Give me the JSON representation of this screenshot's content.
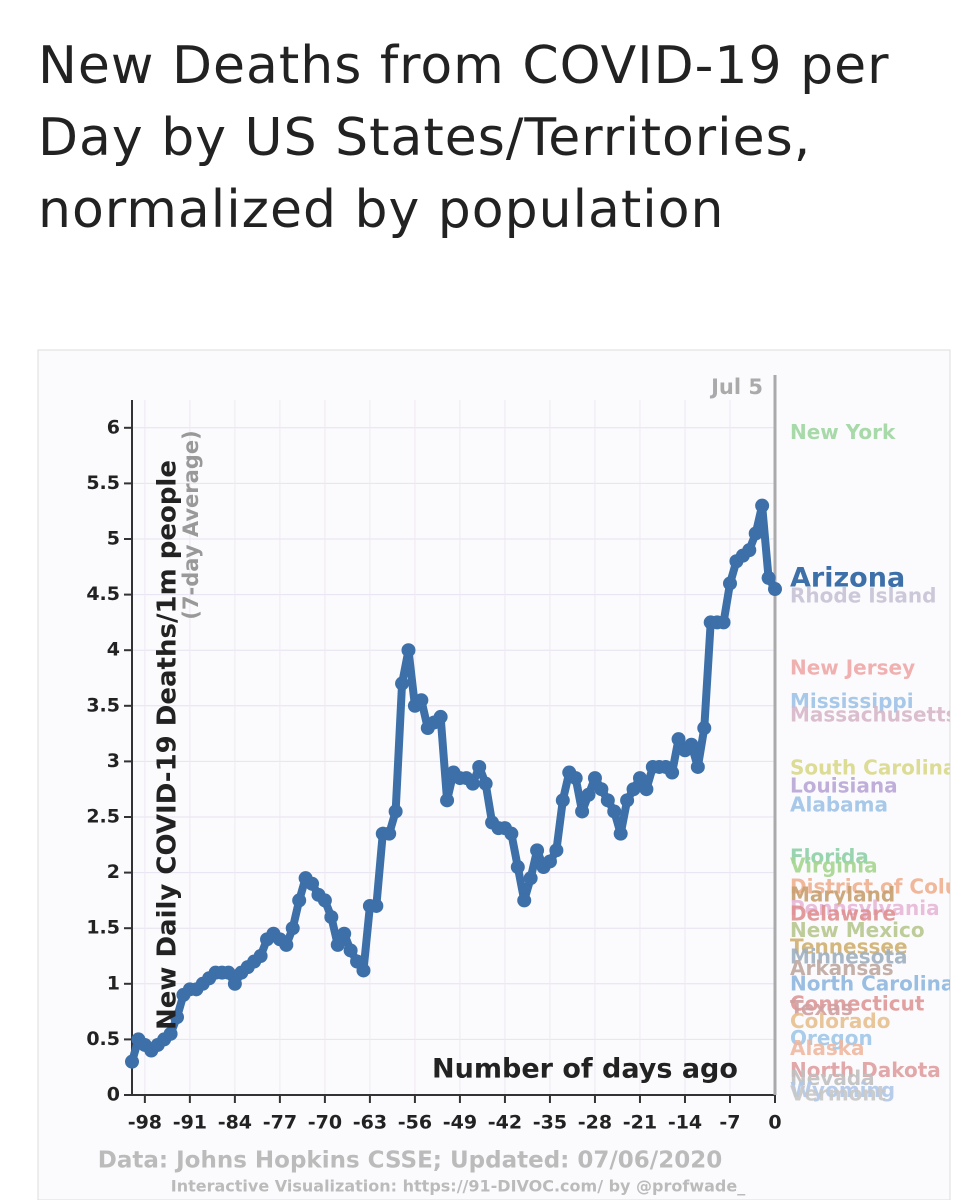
{
  "header": {
    "title": "New Deaths from COVID-19 per Day by US States/Territories, normalized by population"
  },
  "chart_data": {
    "type": "line",
    "y_label": "New Daily COVID-19 Deaths/1m people",
    "y_sublabel": "(7-day Average)",
    "x_label": "Number of days ago",
    "date_annotation": "Jul 5",
    "source": "Data: Johns Hopkins CSSE; Updated: 07/06/2020",
    "credit": "Interactive Visualization: https://91-DIVOC.com/ by @profwade_",
    "x": [
      -100,
      -99,
      -98,
      -97,
      -96,
      -95,
      -94,
      -93,
      -92,
      -91,
      -90,
      -89,
      -88,
      -87,
      -86,
      -85,
      -84,
      -83,
      -82,
      -81,
      -80,
      -79,
      -78,
      -77,
      -76,
      -75,
      -74,
      -73,
      -72,
      -71,
      -70,
      -69,
      -68,
      -67,
      -66,
      -65,
      -64,
      -63,
      -62,
      -61,
      -60,
      -59,
      -58,
      -57,
      -56,
      -55,
      -54,
      -53,
      -52,
      -51,
      -50,
      -49,
      -48,
      -47,
      -46,
      -45,
      -44,
      -43,
      -42,
      -41,
      -40,
      -39,
      -38,
      -37,
      -36,
      -35,
      -34,
      -33,
      -32,
      -31,
      -30,
      -29,
      -28,
      -27,
      -26,
      -25,
      -24,
      -23,
      -22,
      -21,
      -20,
      -19,
      -18,
      -17,
      -16,
      -15,
      -14,
      -13,
      -12,
      -11,
      -10,
      -9,
      -8,
      -7,
      -6,
      -5,
      -4,
      -3,
      -2,
      -1,
      0
    ],
    "series": [
      {
        "name": "Arizona",
        "color": "#3d6fa8",
        "values": [
          0.3,
          0.5,
          0.45,
          0.4,
          0.45,
          0.5,
          0.55,
          0.7,
          0.9,
          0.95,
          0.95,
          1.0,
          1.05,
          1.1,
          1.1,
          1.1,
          1.0,
          1.1,
          1.15,
          1.2,
          1.25,
          1.4,
          1.45,
          1.4,
          1.35,
          1.5,
          1.75,
          1.95,
          1.9,
          1.8,
          1.75,
          1.6,
          1.35,
          1.45,
          1.3,
          1.2,
          1.12,
          1.7,
          1.7,
          2.35,
          2.35,
          2.55,
          3.7,
          4.0,
          3.5,
          3.55,
          3.3,
          3.35,
          3.4,
          2.65,
          2.9,
          2.85,
          2.85,
          2.8,
          2.95,
          2.8,
          2.45,
          2.4,
          2.4,
          2.35,
          2.05,
          1.75,
          1.95,
          2.2,
          2.05,
          2.1,
          2.2,
          2.65,
          2.9,
          2.85,
          2.55,
          2.7,
          2.85,
          2.75,
          2.65,
          2.55,
          2.35,
          2.65,
          2.75,
          2.85,
          2.75,
          2.95,
          2.95,
          2.95,
          2.9,
          3.2,
          3.1,
          3.15,
          2.95,
          3.3,
          4.25,
          4.25,
          4.25,
          4.6,
          4.8,
          4.85,
          4.9,
          5.05,
          5.3,
          4.65,
          4.55
        ]
      }
    ],
    "state_labels": [
      {
        "name": "New York",
        "value": 5.95,
        "color": "#9fd6a0"
      },
      {
        "name": "Rhode Island",
        "value": 4.48,
        "color": "#c9c3d6"
      },
      {
        "name": "New Jersey",
        "value": 3.83,
        "color": "#f0a8a8"
      },
      {
        "name": "Mississippi",
        "value": 3.53,
        "color": "#9ec3e6"
      },
      {
        "name": "Massachusetts",
        "value": 3.41,
        "color": "#d8b8c8"
      },
      {
        "name": "South Carolina",
        "value": 2.93,
        "color": "#d9d98a"
      },
      {
        "name": "Louisiana",
        "value": 2.77,
        "color": "#b9a6d6"
      },
      {
        "name": "Alabama",
        "value": 2.6,
        "color": "#9ec3e6"
      },
      {
        "name": "Florida",
        "value": 2.13,
        "color": "#8fd0a8"
      },
      {
        "name": "Virginia",
        "value": 2.05,
        "color": "#a6d68f"
      },
      {
        "name": "District of Columbia",
        "value": 1.86,
        "color": "#f0b090"
      },
      {
        "name": "Maryland",
        "value": 1.79,
        "color": "#c8a070"
      },
      {
        "name": "Pennsylvania",
        "value": 1.67,
        "color": "#e8b8d8"
      },
      {
        "name": "Delaware",
        "value": 1.62,
        "color": "#e09090"
      },
      {
        "name": "New Mexico",
        "value": 1.47,
        "color": "#b8c890"
      },
      {
        "name": "Tennessee",
        "value": 1.32,
        "color": "#d0b070"
      },
      {
        "name": "Minnesota",
        "value": 1.23,
        "color": "#a0b0c0"
      },
      {
        "name": "Arkansas",
        "value": 1.13,
        "color": "#c0a8a0"
      },
      {
        "name": "North Carolina",
        "value": 0.99,
        "color": "#90b8e0"
      },
      {
        "name": "Connecticut",
        "value": 0.81,
        "color": "#e09898"
      },
      {
        "name": "Texas",
        "value": 0.77,
        "color": "#d0a0a0"
      },
      {
        "name": "Colorado",
        "value": 0.65,
        "color": "#e8c090"
      },
      {
        "name": "Oregon",
        "value": 0.5,
        "color": "#a0c8e8"
      },
      {
        "name": "Alaska",
        "value": 0.41,
        "color": "#f0b8a0"
      },
      {
        "name": "North Dakota",
        "value": 0.21,
        "color": "#e0a0a0"
      },
      {
        "name": "Nevada",
        "value": 0.14,
        "color": "#c0c0c0"
      },
      {
        "name": "Wyoming",
        "value": 0.03,
        "color": "#b0c8e8"
      },
      {
        "name": "Vermont",
        "value": 0,
        "color": "#c8c8c8"
      }
    ],
    "xlim": [
      -100,
      0
    ],
    "ylim": [
      0,
      6.25
    ],
    "xticks": [
      -98,
      -91,
      -84,
      -77,
      -70,
      -63,
      -56,
      -49,
      -42,
      -35,
      -28,
      -21,
      -14,
      -7,
      0
    ],
    "yticks": [
      0,
      0.5,
      1,
      1.5,
      2,
      2.5,
      3,
      3.5,
      4,
      4.5,
      5,
      5.5,
      6
    ],
    "grid": true
  }
}
